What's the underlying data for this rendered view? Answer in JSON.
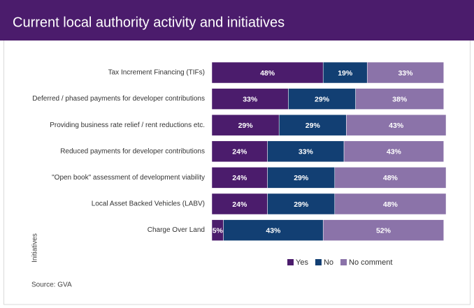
{
  "chart_data": {
    "type": "bar",
    "orientation": "horizontal",
    "stacked": true,
    "title": "Current local authority activity and initiatives",
    "ylabel": "Initiatives",
    "source": "Source: GVA",
    "legend": "bottom",
    "categories": [
      "Tax Increment Financing (TIFs)",
      "Deferred / phased payments for developer contributions",
      "Providing business rate relief / rent reductions etc.",
      "Reduced payments for developer contributions",
      "\"Open book\" assessment of development viability",
      "Local Asset Backed Vehicles (LABV)",
      "Charge Over Land"
    ],
    "series": [
      {
        "name": "Yes",
        "color": "#4b1c6c",
        "values": [
          48,
          33,
          29,
          24,
          24,
          24,
          5
        ],
        "value_labels": [
          "48%",
          "33%",
          "29%",
          "24%",
          "24%",
          "24%",
          "5%"
        ]
      },
      {
        "name": "No",
        "color": "#123f73",
        "values": [
          19,
          29,
          29,
          33,
          29,
          29,
          43
        ],
        "value_labels": [
          "19%",
          "29%",
          "29%",
          "33%",
          "29%",
          "29%",
          "43%"
        ]
      },
      {
        "name": "No comment",
        "color": "#8b73a9",
        "values": [
          33,
          38,
          43,
          43,
          48,
          48,
          52
        ],
        "value_labels": [
          "33%",
          "38%",
          "43%",
          "43%",
          "48%",
          "48%",
          "52%"
        ]
      }
    ]
  }
}
